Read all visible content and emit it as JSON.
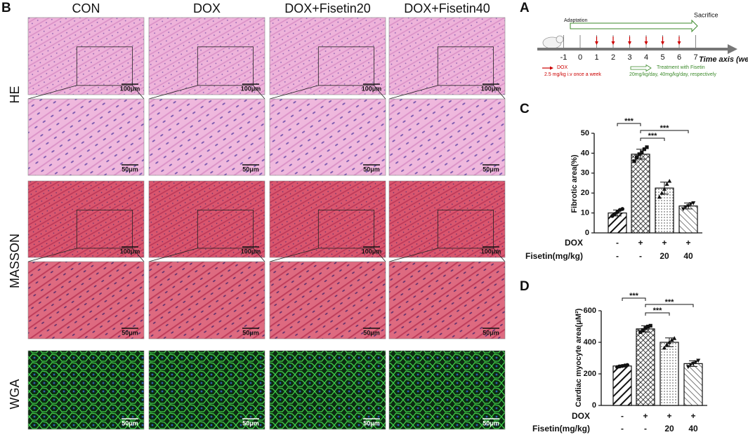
{
  "panel_b": {
    "label": "B",
    "columns": [
      "CON",
      "DOX",
      "DOX+Fisetin20",
      "DOX+Fisetin40"
    ],
    "rows": [
      "HE",
      "MASSON",
      "WGA"
    ],
    "scale_bars": [
      "100μm",
      "50μm",
      "100μm",
      "50μm",
      "50μm"
    ]
  },
  "panel_a": {
    "label": "A",
    "adaptation": "Adaptation",
    "sacrifice": "Sacrifice",
    "weeks": [
      -1,
      0,
      1,
      2,
      3,
      4,
      5,
      6,
      7
    ],
    "axis_label": "Time axis (week)",
    "dox": "DOX",
    "dox_dose": "2.5 mg/kg i.v once a week",
    "treatment": "Treatment with Fisetin",
    "treatment_dose": "20mg/kg/day, 40mg/kg/day, respectively"
  },
  "chart_data": [
    {
      "type": "bar",
      "label": "C",
      "y_label": "Fibrotic area(%)",
      "ylim": [
        0,
        50
      ],
      "yticks": [
        0,
        10,
        20,
        30,
        40,
        50
      ],
      "values": [
        10,
        39.5,
        22.5,
        13.5
      ],
      "errors": [
        1.5,
        2.5,
        3,
        1.5
      ],
      "points": [
        [
          8.5,
          9.5,
          10.5,
          11.5,
          12
        ],
        [
          36,
          38,
          39.5,
          40.5,
          42,
          43
        ],
        [
          18,
          20,
          22,
          24.5,
          26
        ],
        [
          12,
          13,
          13.5,
          14.5,
          15
        ]
      ],
      "significance": [
        "***",
        "***",
        "***"
      ],
      "table": [
        {
          "label": "DOX",
          "cells": [
            "-",
            "+",
            "+",
            "+"
          ]
        },
        {
          "label": "Fisetin(mg/kg)",
          "cells": [
            "-",
            "-",
            "20",
            "40"
          ]
        }
      ]
    },
    {
      "type": "bar",
      "label": "D",
      "y_label": "Cardiac myocyte area(μM²)",
      "ylim": [
        0,
        600
      ],
      "yticks": [
        0,
        200,
        400,
        600
      ],
      "values": [
        250,
        485,
        400,
        265
      ],
      "errors": [
        6,
        20,
        28,
        18
      ],
      "points": [
        [
          243,
          247,
          250,
          253,
          256
        ],
        [
          465,
          478,
          490,
          500,
          505
        ],
        [
          365,
          385,
          400,
          415,
          425
        ],
        [
          245,
          258,
          265,
          275,
          285
        ]
      ],
      "significance": [
        "***",
        "***",
        "***"
      ],
      "table": [
        {
          "label": "DOX",
          "cells": [
            "-",
            "+",
            "+",
            "+"
          ]
        },
        {
          "label": "Fisetin(mg/kg)",
          "cells": [
            "-",
            "-",
            "20",
            "40"
          ]
        }
      ]
    }
  ]
}
